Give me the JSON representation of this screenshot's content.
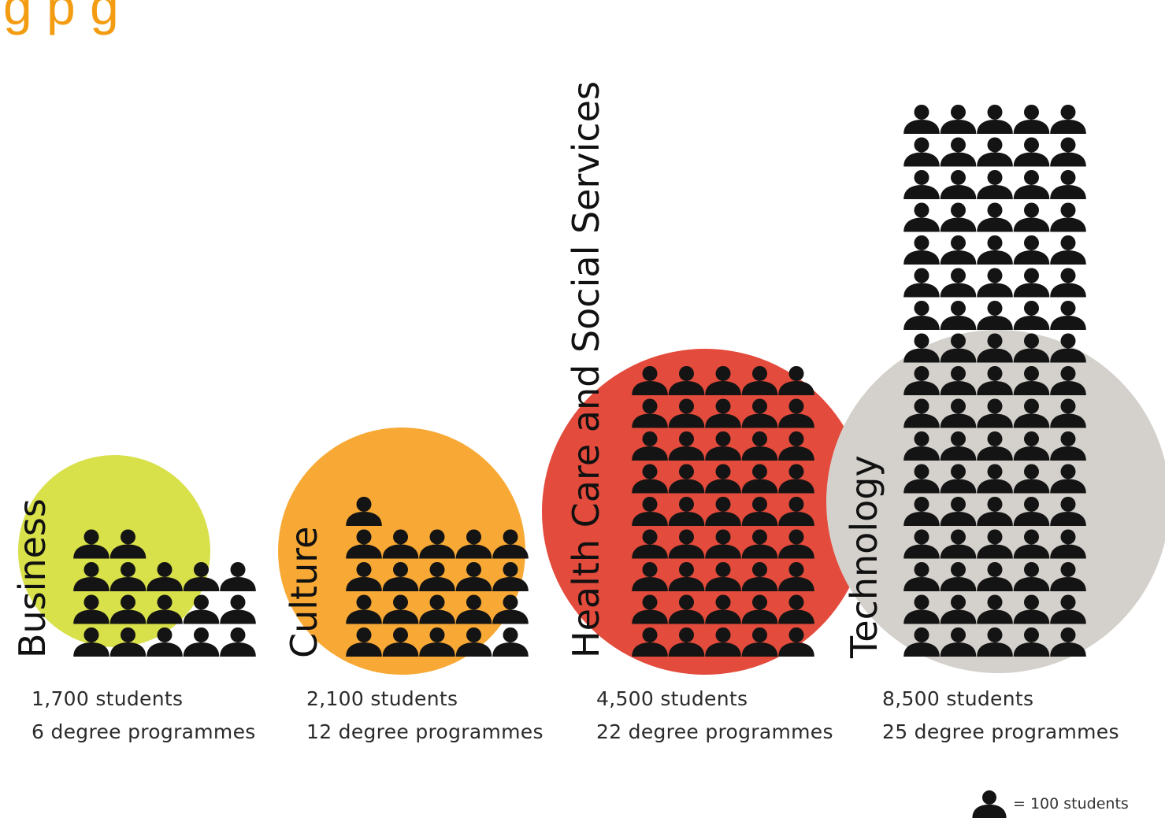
{
  "chart_data": {
    "type": "pictogram",
    "title": "",
    "unit_label": "= 100 students",
    "unit_value": 100,
    "colors": {
      "icon": "#141414",
      "text": "#2b2b2b",
      "title_fragment": "#f39c12"
    },
    "title_fragment": "g   p  g",
    "categories": [
      "Business",
      "Culture",
      "Health Care and Social Services",
      "Technology"
    ],
    "series": [
      {
        "faculty": "Business",
        "students": 1700,
        "students_text": "1,700 students",
        "programmes": 6,
        "programmes_text": "6 degree programmes",
        "icons": 17,
        "circle_color": "#d8e04a"
      },
      {
        "faculty": "Culture",
        "students": 2100,
        "students_text": "2,100 students",
        "programmes": 12,
        "programmes_text": "12 degree programmes",
        "icons": 21,
        "circle_color": "#f8a935"
      },
      {
        "faculty": "Health Care and Social Services",
        "students": 4500,
        "students_text": "4,500 students",
        "programmes": 22,
        "programmes_text": "22 degree programmes",
        "icons": 45,
        "circle_color": "#e34b3c"
      },
      {
        "faculty": "Technology",
        "students": 8500,
        "students_text": "8,500 students",
        "programmes": 25,
        "programmes_text": "25 degree programmes",
        "icons": 85,
        "circle_color": "#d4d1cc"
      }
    ]
  },
  "legend_icon": "person-icon"
}
